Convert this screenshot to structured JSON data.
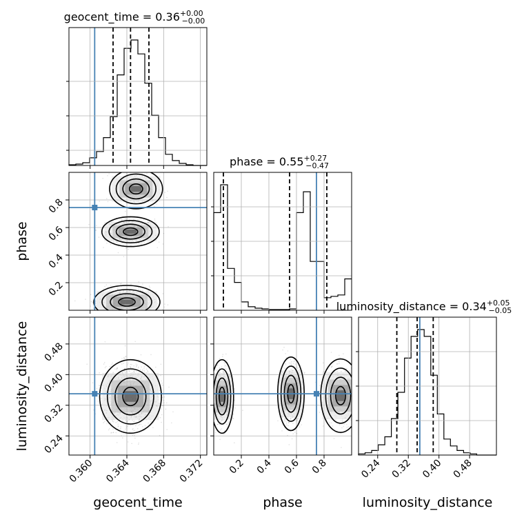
{
  "chart_data": {
    "type": "corner",
    "parameters": [
      "geocent_time",
      "phase",
      "luminosity_distance"
    ],
    "axis_labels": [
      "geocent_time",
      "phase",
      "luminosity_distance"
    ],
    "titles": [
      {
        "param": "geocent_time",
        "name": "geocent_time",
        "median": "0.36",
        "plus": "+0.00",
        "minus": "−0.00"
      },
      {
        "param": "phase",
        "name": "phase",
        "median": "0.55",
        "plus": "+0.27",
        "minus": "−0.47"
      },
      {
        "param": "luminosity_distance",
        "name": "luminosity_distance",
        "median": "0.34",
        "plus": "+0.05",
        "minus": "−0.05"
      }
    ],
    "ranges": {
      "geocent_time": [
        0.3577,
        0.3727
      ],
      "phase": [
        0.0,
        1.0
      ],
      "luminosity_distance": [
        0.19,
        0.55
      ]
    },
    "ticks": {
      "geocent_time": [
        0.36,
        0.364,
        0.368,
        0.372
      ],
      "phase": [
        0.2,
        0.4,
        0.6,
        0.8
      ],
      "luminosity_distance": [
        0.24,
        0.32,
        0.4,
        0.48
      ]
    },
    "tick_labels": {
      "geocent_time": [
        "0.360",
        "0.364",
        "0.368",
        "0.372"
      ],
      "phase": [
        "0.2",
        "0.4",
        "0.6",
        "0.8"
      ],
      "luminosity_distance": [
        "0.24",
        "0.32",
        "0.40",
        "0.48"
      ]
    },
    "truths": {
      "geocent_time": 0.3605,
      "phase": 0.745,
      "luminosity_distance": 0.35
    },
    "quantiles": {
      "geocent_time": [
        0.3625,
        0.3644,
        0.3664
      ],
      "phase": [
        0.07,
        0.55,
        0.82
      ],
      "luminosity_distance": [
        0.29,
        0.343,
        0.385
      ]
    },
    "histograms": {
      "geocent_time": [
        1,
        2,
        4,
        11,
        20,
        40,
        70,
        130,
        168,
        180,
        160,
        118,
        72,
        40,
        16,
        7,
        3,
        1,
        0,
        0
      ],
      "phase": [
        14,
        18,
        6,
        4,
        1.2,
        0.5,
        0.3,
        0.2,
        0.1,
        0.1,
        0.1,
        0.2,
        14,
        17,
        7,
        7,
        1.8,
        2,
        2.2,
        4.5
      ],
      "luminosity_distance": [
        1,
        2,
        4,
        9,
        16,
        32,
        55,
        85,
        104,
        110,
        104,
        70,
        36,
        14,
        8,
        4,
        2,
        1,
        0,
        0,
        0
      ]
    },
    "grid": true,
    "truth_color": "#4682b4"
  }
}
